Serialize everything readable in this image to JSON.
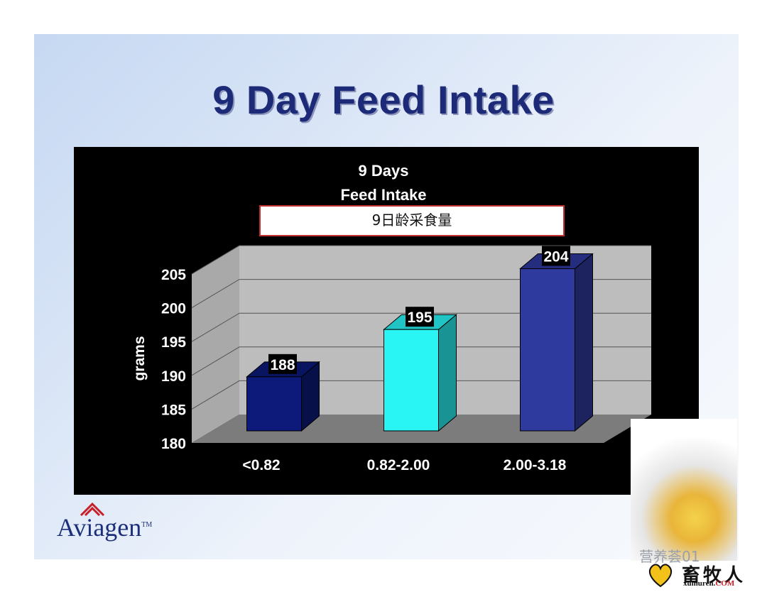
{
  "slide": {
    "title": "9 Day Feed Intake",
    "logo": "Aviagen",
    "logo_tm": "TM"
  },
  "chart_data": {
    "type": "bar",
    "title": [
      "9 Days",
      "Feed Intake"
    ],
    "annotation": "9日龄采食量",
    "ylabel": "grams",
    "ylim": [
      180,
      205
    ],
    "yticks": [
      180,
      185,
      190,
      195,
      200,
      205
    ],
    "categories": [
      "<0.82",
      "0.82-2.00",
      "2.00-3.18"
    ],
    "values": [
      188,
      195,
      204
    ],
    "data_labels": [
      "188",
      "195",
      "204"
    ],
    "colors": [
      "#0d1a7a",
      "#29f5f5",
      "#2e3a9e"
    ],
    "grid": true,
    "style": "3d"
  },
  "watermark": {
    "text": "营养荟01",
    "brand": "畜牧人",
    "url_main": "xumuren.",
    "url_suffix": "COM"
  }
}
